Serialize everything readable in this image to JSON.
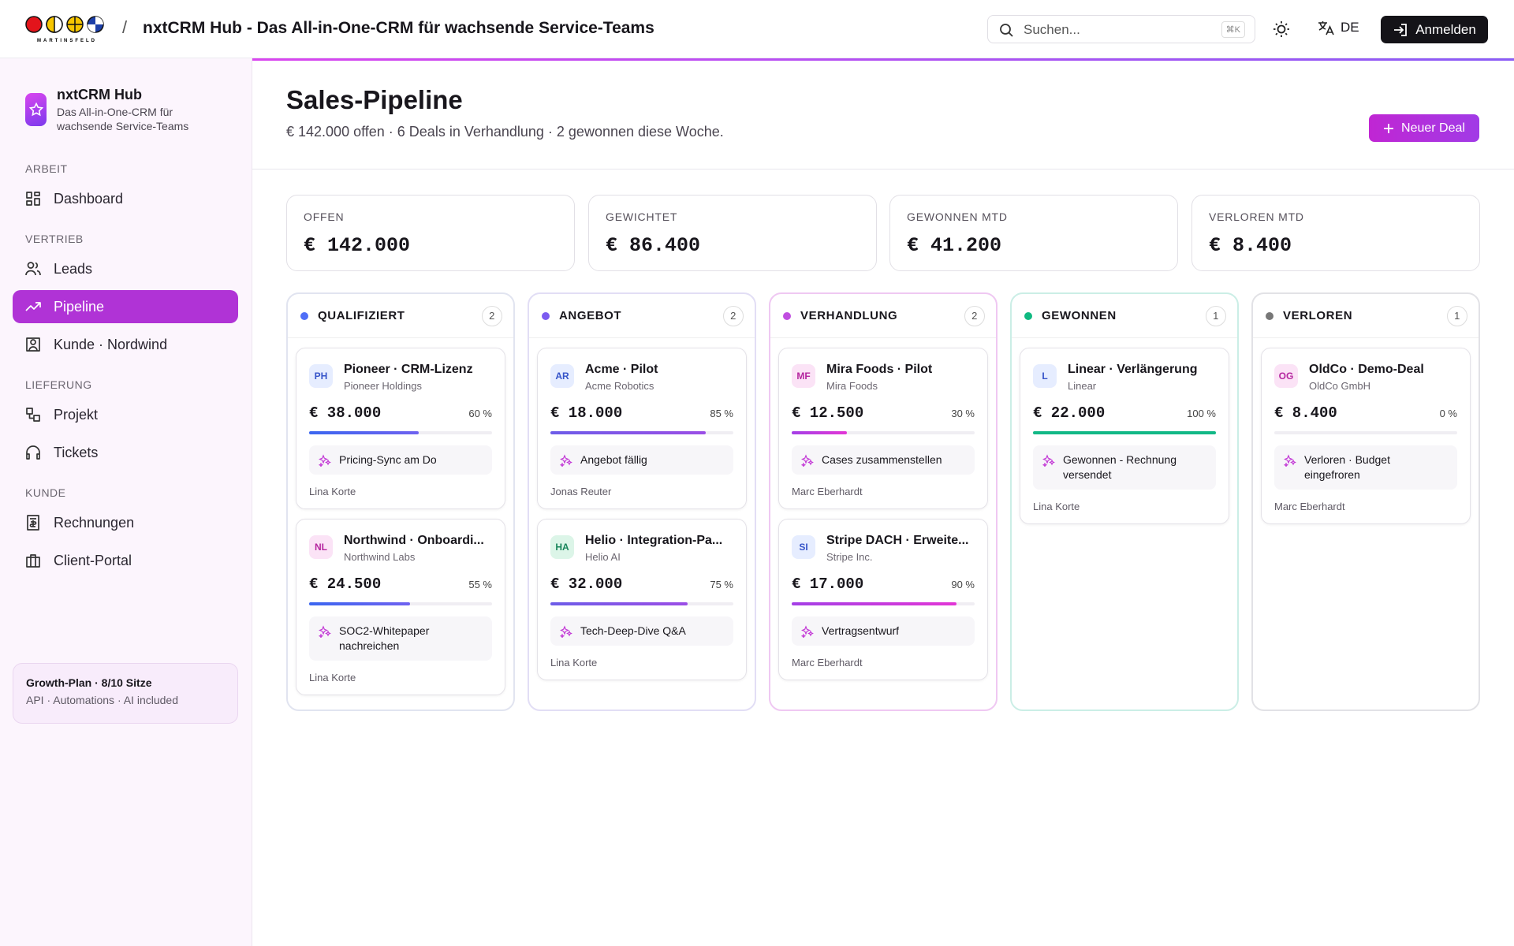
{
  "header": {
    "logo_text": "MARTINSFELD",
    "separator": "/",
    "title": "nxtCRM Hub - Das All-in-One-CRM für wachsende Service-Teams",
    "search_placeholder": "Suchen...",
    "search_shortcut": "⌘K",
    "language": "DE",
    "login": "Anmelden"
  },
  "sidebar": {
    "app_name": "nxtCRM Hub",
    "app_tagline": "Das All-in-One-CRM für wachsende Service-Teams",
    "sections": [
      {
        "title": "ARBEIT",
        "items": [
          "Dashboard"
        ]
      },
      {
        "title": "VERTRIEB",
        "items": [
          "Leads",
          "Pipeline",
          "Kunde · Nordwind"
        ]
      },
      {
        "title": "LIEFERUNG",
        "items": [
          "Projekt",
          "Tickets"
        ]
      },
      {
        "title": "KUNDE",
        "items": [
          "Rechnungen",
          "Client-Portal"
        ]
      }
    ],
    "active": "Pipeline",
    "plan": {
      "title": "Growth-Plan · 8/10 Sitze",
      "features": "API · Automations · AI included"
    }
  },
  "main": {
    "title": "Sales-Pipeline",
    "subtitle": "€ 142.000 offen · 6 Deals in Verhandlung · 2 gewonnen diese Woche.",
    "new_deal": "Neuer Deal",
    "kpis": [
      {
        "label": "OFFEN",
        "value": "€ 142.000"
      },
      {
        "label": "GEWICHTET",
        "value": "€ 86.400"
      },
      {
        "label": "GEWONNEN MTD",
        "value": "€ 41.200"
      },
      {
        "label": "VERLOREN MTD",
        "value": "€ 8.400"
      }
    ],
    "columns": [
      {
        "title": "QUALIFIZIERT",
        "count": 2,
        "cards": [
          {
            "initials": "PH",
            "title": "Pioneer · CRM-Lizenz",
            "company": "Pioneer Holdings",
            "amount": "€ 38.000",
            "probability": {
              "value": 60,
              "label": "60 %"
            },
            "note": "Pricing-Sync am Do",
            "owner": "Lina Korte"
          },
          {
            "initials": "NL",
            "title": "Northwind · Onboardi...",
            "company": "Northwind Labs",
            "amount": "€ 24.500",
            "probability": {
              "value": 55,
              "label": "55 %"
            },
            "note": "SOC2-Whitepaper nachreichen",
            "owner": "Lina Korte"
          }
        ]
      },
      {
        "title": "ANGEBOT",
        "count": 2,
        "cards": [
          {
            "initials": "AR",
            "title": "Acme · Pilot",
            "company": "Acme Robotics",
            "amount": "€ 18.000",
            "probability": {
              "value": 85,
              "label": "85 %"
            },
            "note": "Angebot fällig",
            "owner": "Jonas Reuter"
          },
          {
            "initials": "HA",
            "title": "Helio · Integration-Pa...",
            "company": "Helio AI",
            "amount": "€ 32.000",
            "probability": {
              "value": 75,
              "label": "75 %"
            },
            "note": "Tech-Deep-Dive Q&A",
            "owner": "Lina Korte"
          }
        ]
      },
      {
        "title": "VERHANDLUNG",
        "count": 2,
        "cards": [
          {
            "initials": "MF",
            "title": "Mira Foods · Pilot",
            "company": "Mira Foods",
            "amount": "€ 12.500",
            "probability": {
              "value": 30,
              "label": "30 %"
            },
            "note": "Cases zusammenstellen",
            "owner": "Marc Eberhardt"
          },
          {
            "initials": "SI",
            "title": "Stripe DACH · Erweite...",
            "company": "Stripe Inc.",
            "amount": "€ 17.000",
            "probability": {
              "value": 90,
              "label": "90 %"
            },
            "note": "Vertragsentwurf",
            "owner": "Marc Eberhardt"
          }
        ]
      },
      {
        "title": "GEWONNEN",
        "count": 1,
        "cards": [
          {
            "initials": "L",
            "title": "Linear · Verlängerung",
            "company": "Linear",
            "amount": "€ 22.000",
            "probability": {
              "value": 100,
              "label": "100 %"
            },
            "note": "Gewonnen - Rechnung versendet",
            "owner": "Lina Korte"
          }
        ]
      },
      {
        "title": "VERLOREN",
        "count": 1,
        "cards": [
          {
            "initials": "OG",
            "title": "OldCo · Demo-Deal",
            "company": "OldCo GmbH",
            "amount": "€ 8.400",
            "probability": {
              "value": 0,
              "label": "0 %"
            },
            "note": "Verloren · Budget eingefroren",
            "owner": "Marc Eberhardt"
          }
        ]
      }
    ]
  }
}
